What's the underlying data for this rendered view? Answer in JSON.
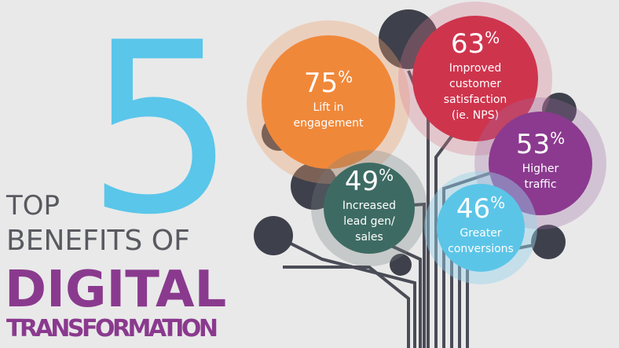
{
  "title": {
    "number": "5",
    "line1": "TOP",
    "line2": "BENEFITS OF",
    "line3": "DIGITAL",
    "line4": "TRANSFORMATION"
  },
  "benefits": [
    {
      "value": 75,
      "unit": "%",
      "label": [
        "Lift in",
        "engagement"
      ]
    },
    {
      "value": 63,
      "unit": "%",
      "label": [
        "Improved",
        "customer",
        "satisfaction",
        "(ie. NPS)"
      ]
    },
    {
      "value": 53,
      "unit": "%",
      "label": [
        "Higher",
        "traffic"
      ]
    },
    {
      "value": 49,
      "unit": "%",
      "label": [
        "Increased",
        "lead gen/",
        "sales"
      ]
    },
    {
      "value": 46,
      "unit": "%",
      "label": [
        "Greater",
        "conversions"
      ]
    }
  ]
}
